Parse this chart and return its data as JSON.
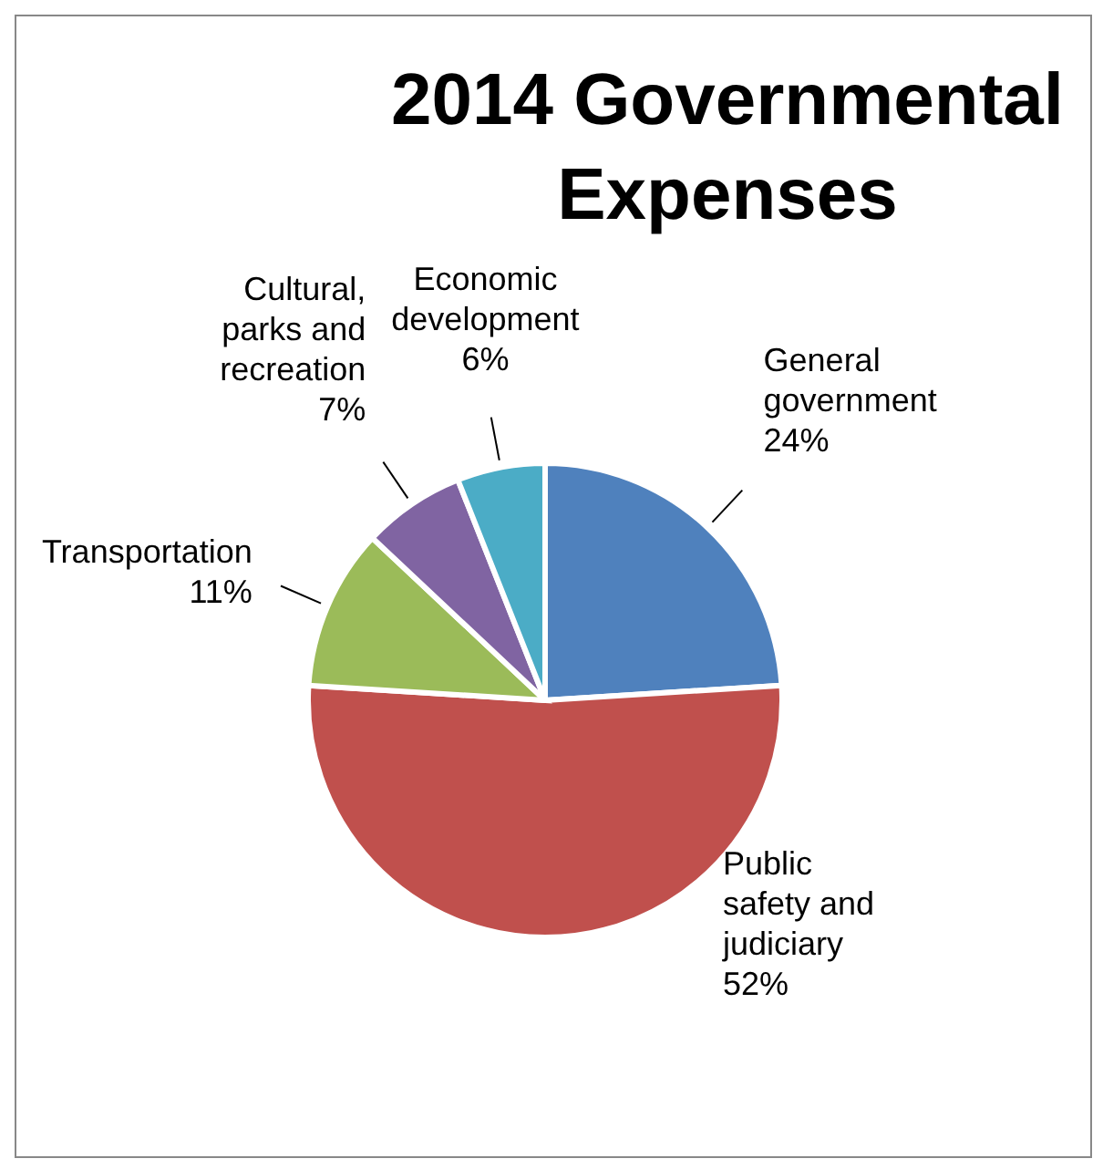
{
  "chart_data": {
    "type": "pie",
    "title": "2014 Governmental Expenses",
    "categories": [
      "General government",
      "Public safety and judiciary",
      "Transportation",
      "Cultural, parks and recreation",
      "Economic development"
    ],
    "values": [
      24,
      52,
      11,
      7,
      6
    ],
    "colors": [
      "#4f81bd",
      "#c0504d",
      "#9bbb59",
      "#8064a2",
      "#4bacc6"
    ],
    "value_labels": [
      "24%",
      "52%",
      "11%",
      "7%",
      "6%"
    ],
    "legend": false
  }
}
